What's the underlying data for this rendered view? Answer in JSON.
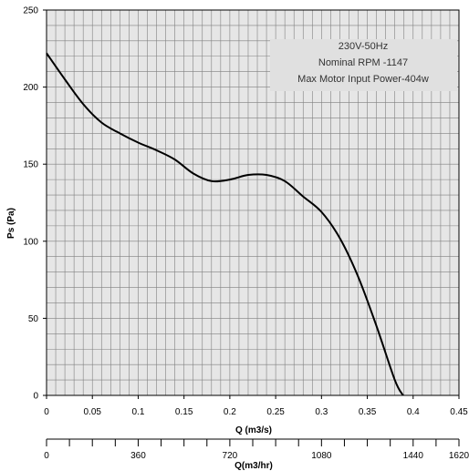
{
  "chart_data": {
    "type": "line",
    "xlabel": "Q (m3/s)",
    "ylabel": "Ps (Pa)",
    "xlim": [
      0,
      0.45
    ],
    "ylim": [
      0,
      250
    ],
    "x_ticks": [
      "0",
      "0.05",
      "0.1",
      "0.15",
      "0.2",
      "0.25",
      "0.3",
      "0.35",
      "0.4",
      "0.45"
    ],
    "y_ticks": [
      "0",
      "50",
      "100",
      "150",
      "200",
      "250"
    ],
    "secondary_axis": {
      "label": "Q(m3/hr)",
      "range": [
        0,
        1620
      ],
      "ticks": [
        "0",
        "360",
        "720",
        "1080",
        "1440",
        "1620"
      ]
    },
    "info_box": [
      "230V-50Hz",
      "Nominal RPM -1147",
      "Max Motor Input Power-404w"
    ],
    "grid": true,
    "colors": {
      "plot_bg": "#e6e6e6",
      "grid": "#808080",
      "curve": "#000000",
      "info_bg": "#e0e0e0"
    },
    "series": [
      {
        "x": [
          0,
          0.02,
          0.04,
          0.06,
          0.08,
          0.1,
          0.12,
          0.14,
          0.16,
          0.18,
          0.2,
          0.22,
          0.24,
          0.26,
          0.28,
          0.3,
          0.32,
          0.34,
          0.36,
          0.38,
          0.389
        ],
        "y": [
          222,
          205,
          189,
          177,
          170,
          164,
          159,
          153,
          144,
          139,
          140,
          143,
          143,
          139,
          129,
          119,
          102,
          77,
          45,
          10,
          0
        ]
      }
    ]
  }
}
